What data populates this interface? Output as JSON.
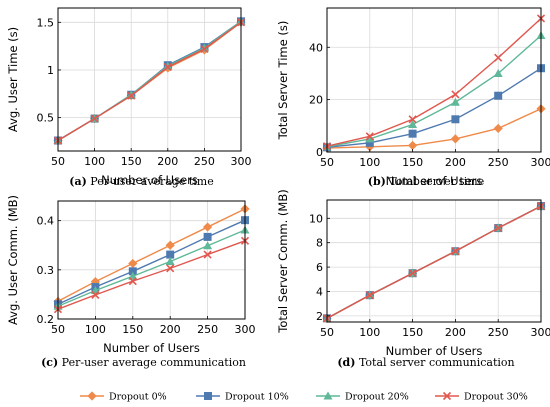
{
  "legend": {
    "entries": [
      "Dropout 0%",
      "Dropout 10%",
      "Dropout 20%",
      "Dropout 30%"
    ]
  },
  "series_styles": [
    {
      "color": "#ef8a4a",
      "marker": "diamond"
    },
    {
      "color": "#4f7ab0",
      "marker": "square"
    },
    {
      "color": "#5fb898",
      "marker": "triangle"
    },
    {
      "color": "#e0584f",
      "marker": "cross"
    }
  ],
  "chart_data": [
    {
      "type": "line",
      "caption_letter": "(a)",
      "caption_text": " Per-user average time",
      "xlabel": "Number of Users",
      "ylabel": "Avg. User Time (s)",
      "x": [
        50,
        100,
        150,
        200,
        250,
        300
      ],
      "xlim": [
        50,
        300
      ],
      "ylim": [
        0.15,
        1.65
      ],
      "yticks": [
        0.5,
        1,
        1.5
      ],
      "ytick_labels": [
        "0.5",
        "1",
        "1.5"
      ],
      "series": [
        {
          "values": [
            0.26,
            0.49,
            0.73,
            1.02,
            1.21,
            1.5
          ]
        },
        {
          "values": [
            0.26,
            0.49,
            0.74,
            1.05,
            1.24,
            1.51
          ]
        },
        {
          "values": [
            0.26,
            0.49,
            0.74,
            1.04,
            1.23,
            1.51
          ]
        },
        {
          "values": [
            0.26,
            0.49,
            0.73,
            1.03,
            1.22,
            1.5
          ]
        }
      ]
    },
    {
      "type": "line",
      "caption_letter": "(b)",
      "caption_text": " Total server time",
      "xlabel": "Number of Users",
      "ylabel": "Total Server Time (s)",
      "x": [
        50,
        100,
        150,
        200,
        250,
        300
      ],
      "xlim": [
        50,
        300
      ],
      "ylim": [
        0,
        55
      ],
      "yticks": [
        0,
        20,
        40
      ],
      "ytick_labels": [
        "0",
        "20",
        "40"
      ],
      "series": [
        {
          "values": [
            1.5,
            2.0,
            2.5,
            5.0,
            9.0,
            16.5
          ]
        },
        {
          "values": [
            1.8,
            3.5,
            7.0,
            12.5,
            21.5,
            32.0
          ]
        },
        {
          "values": [
            2.0,
            5.0,
            10.5,
            19.0,
            30.0,
            44.5
          ]
        },
        {
          "values": [
            2.2,
            6.0,
            12.5,
            22.0,
            36.0,
            51.0
          ]
        }
      ]
    },
    {
      "type": "line",
      "caption_letter": "(c)",
      "caption_text": " Per-user average communication",
      "xlabel": "Number of Users",
      "ylabel": "Avg. User Comm. (MB)",
      "x": [
        50,
        100,
        150,
        200,
        250,
        300
      ],
      "xlim": [
        50,
        300
      ],
      "ylim": [
        0.2,
        0.44
      ],
      "yticks": [
        0.2,
        0.3,
        0.4
      ],
      "ytick_labels": [
        "0.2",
        "0.3",
        "0.4"
      ],
      "series": [
        {
          "values": [
            0.236,
            0.276,
            0.313,
            0.35,
            0.387,
            0.424
          ]
        },
        {
          "values": [
            0.23,
            0.265,
            0.297,
            0.331,
            0.367,
            0.401
          ]
        },
        {
          "values": [
            0.226,
            0.258,
            0.287,
            0.317,
            0.349,
            0.381
          ]
        },
        {
          "values": [
            0.22,
            0.249,
            0.277,
            0.303,
            0.331,
            0.359
          ]
        }
      ]
    },
    {
      "type": "line",
      "caption_letter": "(d)",
      "caption_text": " Total server communication",
      "xlabel": "Number of Users",
      "ylabel": "Total Server Comm. (MB)",
      "x": [
        50,
        100,
        150,
        200,
        250,
        300
      ],
      "xlim": [
        50,
        300
      ],
      "ylim": [
        1.5,
        11.5
      ],
      "yticks": [
        2,
        4,
        6,
        8,
        10
      ],
      "ytick_labels": [
        "2",
        "4",
        "6",
        "8",
        "10"
      ],
      "series": [
        {
          "values": [
            1.8,
            3.7,
            5.5,
            7.3,
            9.2,
            11.0
          ]
        },
        {
          "values": [
            1.8,
            3.7,
            5.5,
            7.3,
            9.2,
            11.0
          ]
        },
        {
          "values": [
            1.8,
            3.7,
            5.5,
            7.3,
            9.2,
            11.0
          ]
        },
        {
          "values": [
            1.8,
            3.7,
            5.5,
            7.3,
            9.2,
            11.0
          ]
        }
      ]
    }
  ]
}
